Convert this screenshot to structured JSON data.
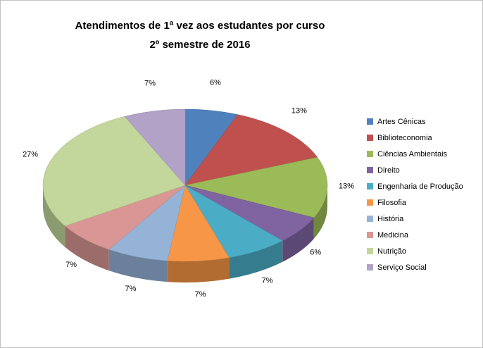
{
  "title": {
    "line1": "Atendimentos de 1ª vez aos estudantes por curso",
    "line2": "2º semestre de 2016"
  },
  "chart_data": {
    "type": "pie",
    "style": "3d-exploded-none",
    "title": "Atendimentos de 1ª vez aos estudantes por curso 2º semestre de 2016",
    "legend_position": "right",
    "data_labels": "percent-outside",
    "start_angle_deg": -90,
    "direction": "clockwise",
    "series": [
      {
        "name": "Artes Cênicas",
        "value": 6,
        "label": "6%",
        "color": "#4F81BD"
      },
      {
        "name": "Biblioteconomia",
        "value": 13,
        "label": "13%",
        "color": "#C0504D"
      },
      {
        "name": "Ciências Ambientais",
        "value": 13,
        "label": "13%",
        "color": "#9BBB59"
      },
      {
        "name": "Direito",
        "value": 6,
        "label": "6%",
        "color": "#8064A2"
      },
      {
        "name": "Engenharia de Produção",
        "value": 7,
        "label": "7%",
        "color": "#4BACC6"
      },
      {
        "name": "Filosofia",
        "value": 7,
        "label": "7%",
        "color": "#F79646"
      },
      {
        "name": "História",
        "value": 7,
        "label": "7%",
        "color": "#95B3D7"
      },
      {
        "name": "Medicina",
        "value": 7,
        "label": "7%",
        "color": "#D99694"
      },
      {
        "name": "Nutrição",
        "value": 27,
        "label": "27%",
        "color": "#C3D69B"
      },
      {
        "name": "Serviço Social",
        "value": 7,
        "label": "7%",
        "color": "#B3A2C7"
      }
    ]
  }
}
